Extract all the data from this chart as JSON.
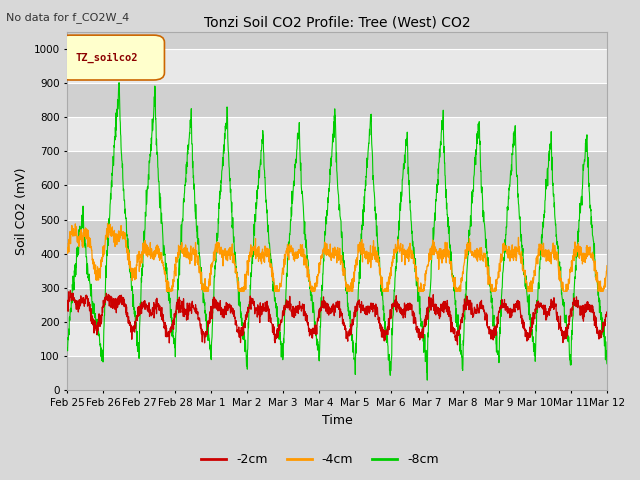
{
  "title": "Tonzi Soil CO2 Profile: Tree (West) CO2",
  "subtitle": "No data for f_CO2W_4",
  "ylabel": "Soil CO2 (mV)",
  "xlabel": "Time",
  "legend_label": "TZ_soilco2",
  "series_labels": [
    "-2cm",
    "-4cm",
    "-8cm"
  ],
  "series_colors": [
    "#cc0000",
    "#ff9900",
    "#00cc00"
  ],
  "ylim": [
    0,
    1050
  ],
  "yticks": [
    0,
    100,
    200,
    300,
    400,
    500,
    600,
    700,
    800,
    900,
    1000
  ],
  "xtick_labels": [
    "Feb 25",
    "Feb 26",
    "Feb 27",
    "Feb 28",
    "Mar 1",
    "Mar 2",
    "Mar 3",
    "Mar 4",
    "Mar 5",
    "Mar 6",
    "Mar 7",
    "Mar 8",
    "Mar 9",
    "Mar 10",
    "Mar 11",
    "Mar 12"
  ],
  "bg_color": "#d8d8d8",
  "plot_bg_color": "#e8e8e8",
  "grid_color": "#ffffff",
  "legend_box_color": "#ffffcc",
  "legend_box_edge": "#cc6600",
  "stripe_color": "#d0d0d0"
}
